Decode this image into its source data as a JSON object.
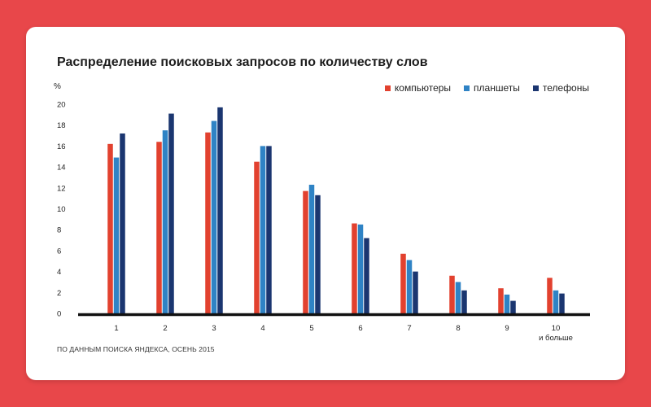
{
  "chart_data": {
    "type": "bar",
    "title": "Распределение поисковых запросов по количеству слов",
    "ylabel": "%",
    "xlabel": "",
    "ylim": [
      0,
      20
    ],
    "yticks": [
      0,
      2,
      4,
      6,
      8,
      10,
      12,
      14,
      16,
      18,
      20
    ],
    "categories": [
      "1",
      "2",
      "3",
      "4",
      "5",
      "6",
      "7",
      "8",
      "9",
      "10"
    ],
    "category_sublabels": [
      "",
      "",
      "",
      "",
      "",
      "",
      "",
      "",
      "",
      "и больше"
    ],
    "series": [
      {
        "name": "компьютеры",
        "color": "#e2412f",
        "values": [
          16.2,
          16.4,
          17.3,
          14.5,
          11.7,
          8.6,
          5.7,
          3.6,
          2.4,
          3.4
        ]
      },
      {
        "name": "планшеты",
        "color": "#2f83c5",
        "values": [
          14.9,
          17.5,
          18.4,
          16.0,
          12.3,
          8.5,
          5.1,
          3.0,
          1.8,
          2.2
        ]
      },
      {
        "name": "телефоны",
        "color": "#1b3670",
        "values": [
          17.2,
          19.1,
          19.7,
          16.0,
          11.3,
          7.2,
          4.0,
          2.2,
          1.2,
          1.9
        ]
      }
    ],
    "grid": false,
    "legend_position": "top-right"
  },
  "source_note": "ПО ДАННЫМ ПОИСКА ЯНДЕКСА, ОСЕНЬ 2015"
}
